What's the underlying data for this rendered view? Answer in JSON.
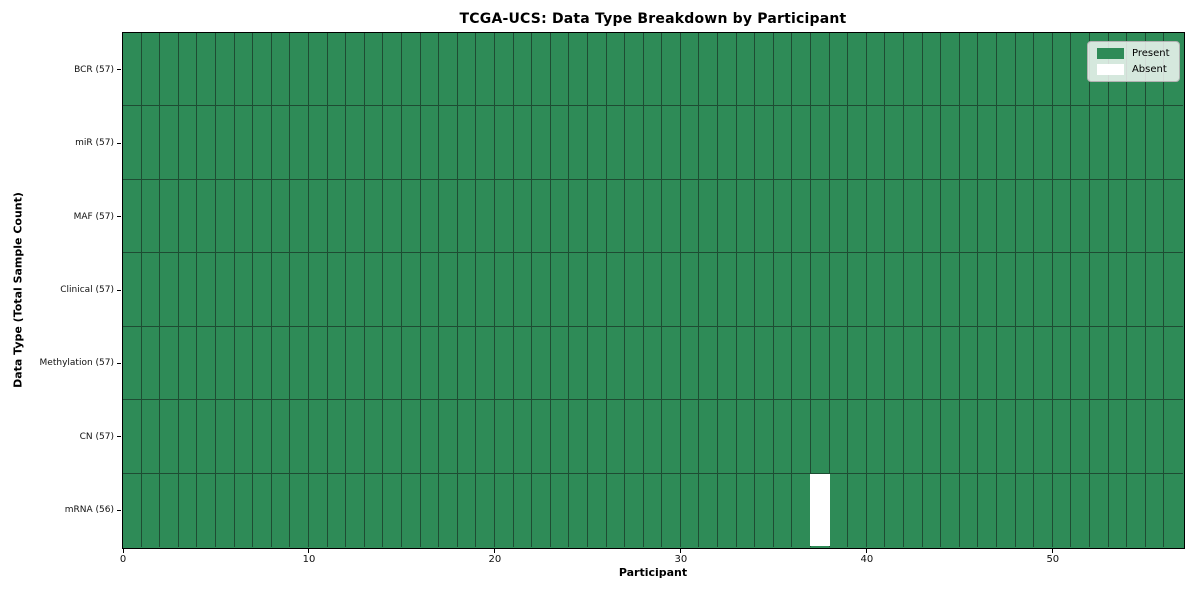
{
  "chart_data": {
    "type": "heatmap",
    "title": "TCGA-UCS: Data Type Breakdown by Participant",
    "xlabel": "Participant",
    "ylabel": "Data Type (Total Sample Count)",
    "rows": [
      "BCR (57)",
      "miR (57)",
      "MAF (57)",
      "Clinical (57)",
      "Methylation (57)",
      "CN (57)",
      "mRNA (56)"
    ],
    "row_sample_counts": [
      57,
      57,
      57,
      57,
      57,
      57,
      56
    ],
    "n_participants": 57,
    "x_ticks": [
      0,
      10,
      20,
      30,
      40,
      50
    ],
    "x_range": [
      0,
      57
    ],
    "cell_values": "all cells present (value 1) except listed absent_cells",
    "absent_cells": [
      {
        "row": "mRNA (56)",
        "participant": 37
      }
    ],
    "colors": {
      "present": "#2e8b57",
      "absent": "#ffffff",
      "gridline": "#1e4c33",
      "axis": "#000000"
    },
    "grid": "on",
    "legend": {
      "position": "upper right",
      "entries": [
        {
          "label": "Present",
          "swatch": "#2e8b57"
        },
        {
          "label": "Absent",
          "swatch": "#ffffff"
        }
      ]
    }
  }
}
